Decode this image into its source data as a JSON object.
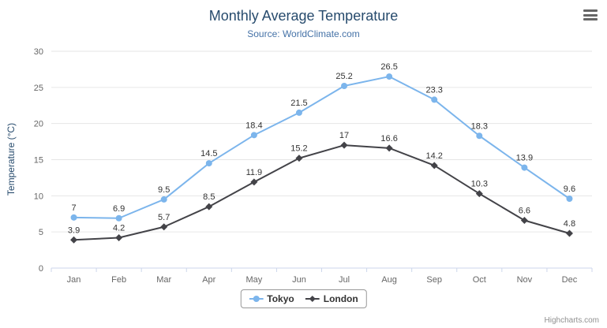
{
  "header": {
    "title": "Monthly Average Temperature",
    "subtitle": "Source: WorldClimate.com"
  },
  "credits": "Highcharts.com",
  "colors": {
    "tokyo": "#7cb5ec",
    "london": "#434348",
    "grid": "#e6e6e6",
    "axis_line": "#ccd6eb",
    "axis_label": "#666666",
    "title": "#274b6d",
    "subtitle": "#4572a7"
  },
  "chart_data": {
    "type": "line",
    "title": "Monthly Average Temperature",
    "subtitle": "Source: WorldClimate.com",
    "categories": [
      "Jan",
      "Feb",
      "Mar",
      "Apr",
      "May",
      "Jun",
      "Jul",
      "Aug",
      "Sep",
      "Oct",
      "Nov",
      "Dec"
    ],
    "series": [
      {
        "name": "Tokyo",
        "color": "#7cb5ec",
        "marker": "circle",
        "values": [
          7,
          6.9,
          9.5,
          14.5,
          18.4,
          21.5,
          25.2,
          26.5,
          23.3,
          18.3,
          13.9,
          9.6
        ]
      },
      {
        "name": "London",
        "color": "#434348",
        "marker": "diamond",
        "values": [
          3.9,
          4.2,
          5.7,
          8.5,
          11.9,
          15.2,
          17,
          16.6,
          14.2,
          10.3,
          6.6,
          4.8
        ]
      }
    ],
    "xlabel": "",
    "ylabel": "Temperature (°C)",
    "ylim": [
      0,
      30
    ],
    "yticks": [
      0,
      5,
      10,
      15,
      20,
      25,
      30
    ],
    "grid": true,
    "legend_position": "bottom",
    "data_labels": true
  }
}
